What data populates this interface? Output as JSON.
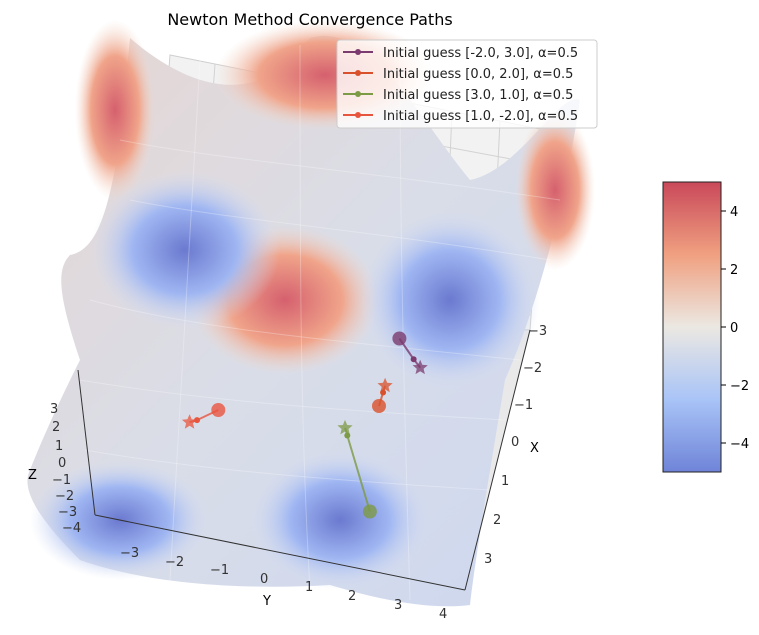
{
  "chart_data": {
    "type": "surface3d",
    "title": "Newton Method Convergence Paths",
    "xlabel": "X",
    "ylabel": "Y",
    "zlabel": "Z",
    "x_ticks": [
      "−3",
      "−2",
      "−1",
      "0",
      "1",
      "2",
      "3"
    ],
    "y_ticks": [
      "−3",
      "−2",
      "−1",
      "0",
      "1",
      "2",
      "3",
      "4"
    ],
    "z_ticks": [
      "3",
      "2",
      "1",
      "0",
      "−1",
      "−2",
      "−3",
      "−4"
    ],
    "colorbar": {
      "ticks": [
        "4",
        "2",
        "0",
        "−2",
        "−4"
      ],
      "range": [
        -5,
        5
      ],
      "colormap": "coolwarm"
    },
    "legend_position": "top-right",
    "series": [
      {
        "name": "Initial guess [-2.0, 3.0], α=0.5",
        "color": "#7b3b6e",
        "start": [
          -2.0,
          3.0
        ],
        "path": [
          [
            -2.0,
            3.0
          ],
          [
            -1.5,
            3.2
          ],
          [
            -1.3,
            3.3
          ]
        ]
      },
      {
        "name": "Initial guess [0.0, 2.0], α=0.5",
        "color": "#d9512c",
        "start": [
          0.0,
          2.0
        ],
        "path": [
          [
            0.0,
            2.0
          ],
          [
            -0.4,
            2.2
          ],
          [
            -0.6,
            2.3
          ]
        ]
      },
      {
        "name": "Initial guess [3.0, 1.0], α=0.5",
        "color": "#7d9a45",
        "start": [
          3.0,
          1.0
        ],
        "path": [
          [
            3.0,
            1.0
          ],
          [
            1.0,
            1.0
          ],
          [
            0.8,
            1.0
          ]
        ]
      },
      {
        "name": "Initial guess [1.0, -2.0], α=0.5",
        "color": "#e8553e",
        "start": [
          1.0,
          -2.0
        ],
        "path": [
          [
            1.0,
            -2.0
          ],
          [
            1.4,
            -2.6
          ],
          [
            1.5,
            -2.8
          ]
        ]
      }
    ]
  }
}
